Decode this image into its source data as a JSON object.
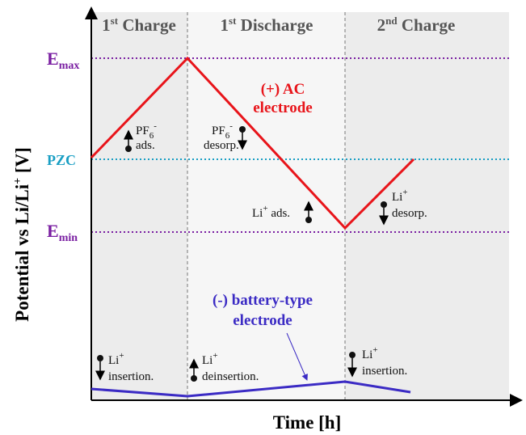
{
  "axes": {
    "y_label": {
      "main": "Potential vs Li/Li",
      "sup": "+",
      "rest": " [V]"
    },
    "x_label": "Time [h]"
  },
  "phases": [
    {
      "main": "1",
      "sup": "st",
      "rest": " Charge"
    },
    {
      "main": "1",
      "sup": "st",
      "rest": " Discharge"
    },
    {
      "main": "2",
      "sup": "nd",
      "rest": " Charge"
    }
  ],
  "levels": {
    "emax": {
      "main": "E",
      "sub": "max"
    },
    "pzc": "PZC",
    "emin": {
      "main": "E",
      "sub": "min"
    }
  },
  "electrodes": {
    "positive": [
      "(+) AC",
      "electrode"
    ],
    "negative": [
      "(-) battery-type",
      "electrode"
    ]
  },
  "annotations": {
    "pf6_ads": {
      "main": "PF",
      "sub": "6",
      "sup": "-",
      "line2": "ads."
    },
    "pf6_desorp": {
      "main": "PF",
      "sub": "6",
      "sup": "-",
      "line2": "desorp."
    },
    "li_ads": {
      "main": "Li",
      "sup": "+",
      "rest": " ads."
    },
    "li_desorp": {
      "main": "Li",
      "sup": "+",
      "line2": "desorp."
    },
    "li_insertion_1": {
      "main": "Li",
      "sup": "+",
      "line2": "insertion."
    },
    "li_deinsertion": {
      "main": "Li",
      "sup": "+",
      "line2": "deinsertion."
    },
    "li_insertion_2": {
      "main": "Li",
      "sup": "+",
      "line2": "insertion."
    }
  }
}
